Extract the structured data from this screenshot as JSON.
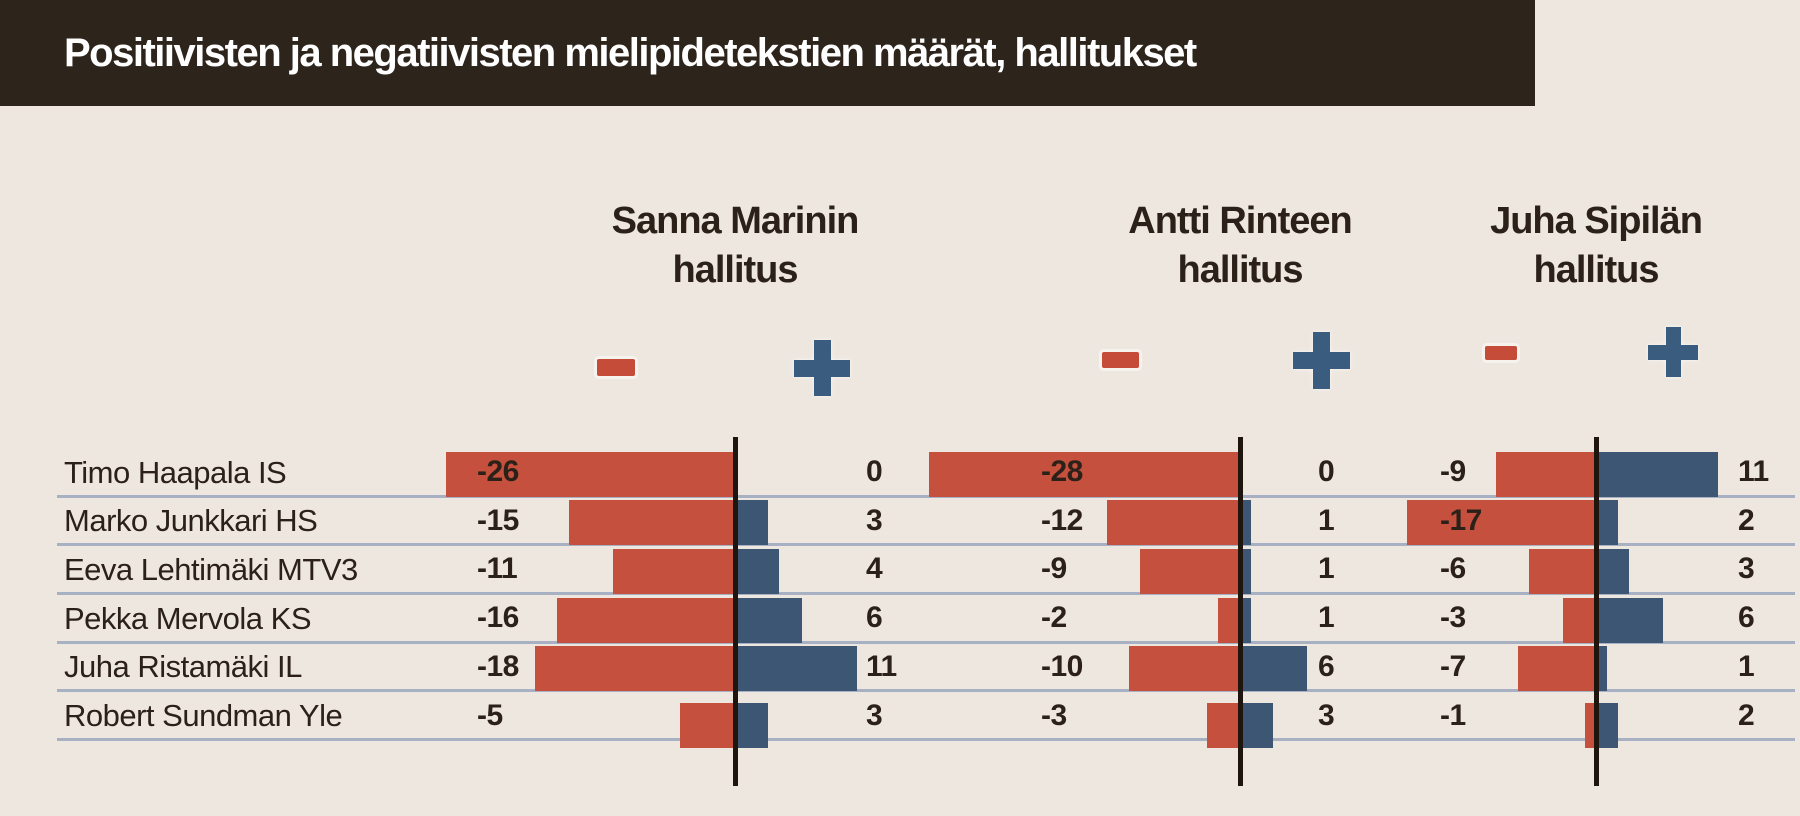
{
  "title": "Positiivisten ja negatiivisten mielipidetekstien määrät, hallitukset",
  "rows": [
    "Timo Haapala IS",
    "Marko Junkkari HS",
    "Eeva Lehtimäki MTV3",
    "Pekka Mervola KS",
    "Juha Ristamäki IL",
    "Robert Sundman Yle"
  ],
  "columns": [
    {
      "name": "Sanna Marinin",
      "suffix": "hallitus",
      "minus_symbol": "-",
      "plus_symbol": "+",
      "negatives": [
        -26,
        -15,
        -11,
        -16,
        -18,
        -5
      ],
      "positives": [
        0,
        3,
        4,
        6,
        11,
        3
      ]
    },
    {
      "name": "Antti Rinteen",
      "suffix": "hallitus",
      "minus_symbol": "-",
      "plus_symbol": "+",
      "negatives": [
        -28,
        -12,
        -9,
        -2,
        -10,
        -3
      ],
      "positives": [
        0,
        1,
        1,
        1,
        6,
        3
      ]
    },
    {
      "name": "Juha Sipilän",
      "suffix": "hallitus",
      "minus_symbol": "-",
      "plus_symbol": "+",
      "negatives": [
        -9,
        -17,
        -6,
        -3,
        -7,
        -1
      ],
      "positives": [
        11,
        2,
        3,
        6,
        1,
        2
      ]
    }
  ],
  "colors": {
    "background": "#eee7e0",
    "title_bar": "#2d241b",
    "title_text": "#ffffff",
    "negative_red": "#c5503d",
    "positive_blue": "#3c5673",
    "text_dark": "#2b2119",
    "row_separator": "#a7b1c3",
    "axis_line": "#1e150e"
  },
  "chart_data": {
    "type": "bar",
    "orientation": "horizontal-diverging",
    "title": "Positiivisten ja negatiivisten mielipidetekstien määrät, hallitukset",
    "categories": [
      "Timo Haapala IS",
      "Marko Junkkari HS",
      "Eeva Lehtimäki MTV3",
      "Pekka Mervola KS",
      "Juha Ristamäki IL",
      "Robert Sundman Yle"
    ],
    "panels": [
      "Sanna Marinin hallitus",
      "Antti Rinteen hallitus",
      "Juha Sipilän hallitus"
    ],
    "series": [
      {
        "name": "Sanna Marinin hallitus − (negatiiviset)",
        "values": [
          -26,
          -15,
          -11,
          -16,
          -18,
          -5
        ]
      },
      {
        "name": "Sanna Marinin hallitus + (positiiviset)",
        "values": [
          0,
          3,
          4,
          6,
          11,
          3
        ]
      },
      {
        "name": "Antti Rinteen hallitus − (negatiiviset)",
        "values": [
          -28,
          -12,
          -9,
          -2,
          -10,
          -3
        ]
      },
      {
        "name": "Antti Rinteen hallitus + (positiiviset)",
        "values": [
          0,
          1,
          1,
          1,
          6,
          3
        ]
      },
      {
        "name": "Juha Sipilän hallitus − (negatiiviset)",
        "values": [
          -9,
          -17,
          -6,
          -3,
          -7,
          -1
        ]
      },
      {
        "name": "Juha Sipilän hallitus + (positiiviset)",
        "values": [
          11,
          2,
          3,
          6,
          1,
          2
        ]
      }
    ],
    "value_labels": true,
    "x_range_approx": [
      -28,
      11
    ],
    "grid": "horizontal row separator lines",
    "legend": {
      "negative_symbol": "−",
      "positive_symbol": "+",
      "legend_position": "above each panel"
    }
  }
}
